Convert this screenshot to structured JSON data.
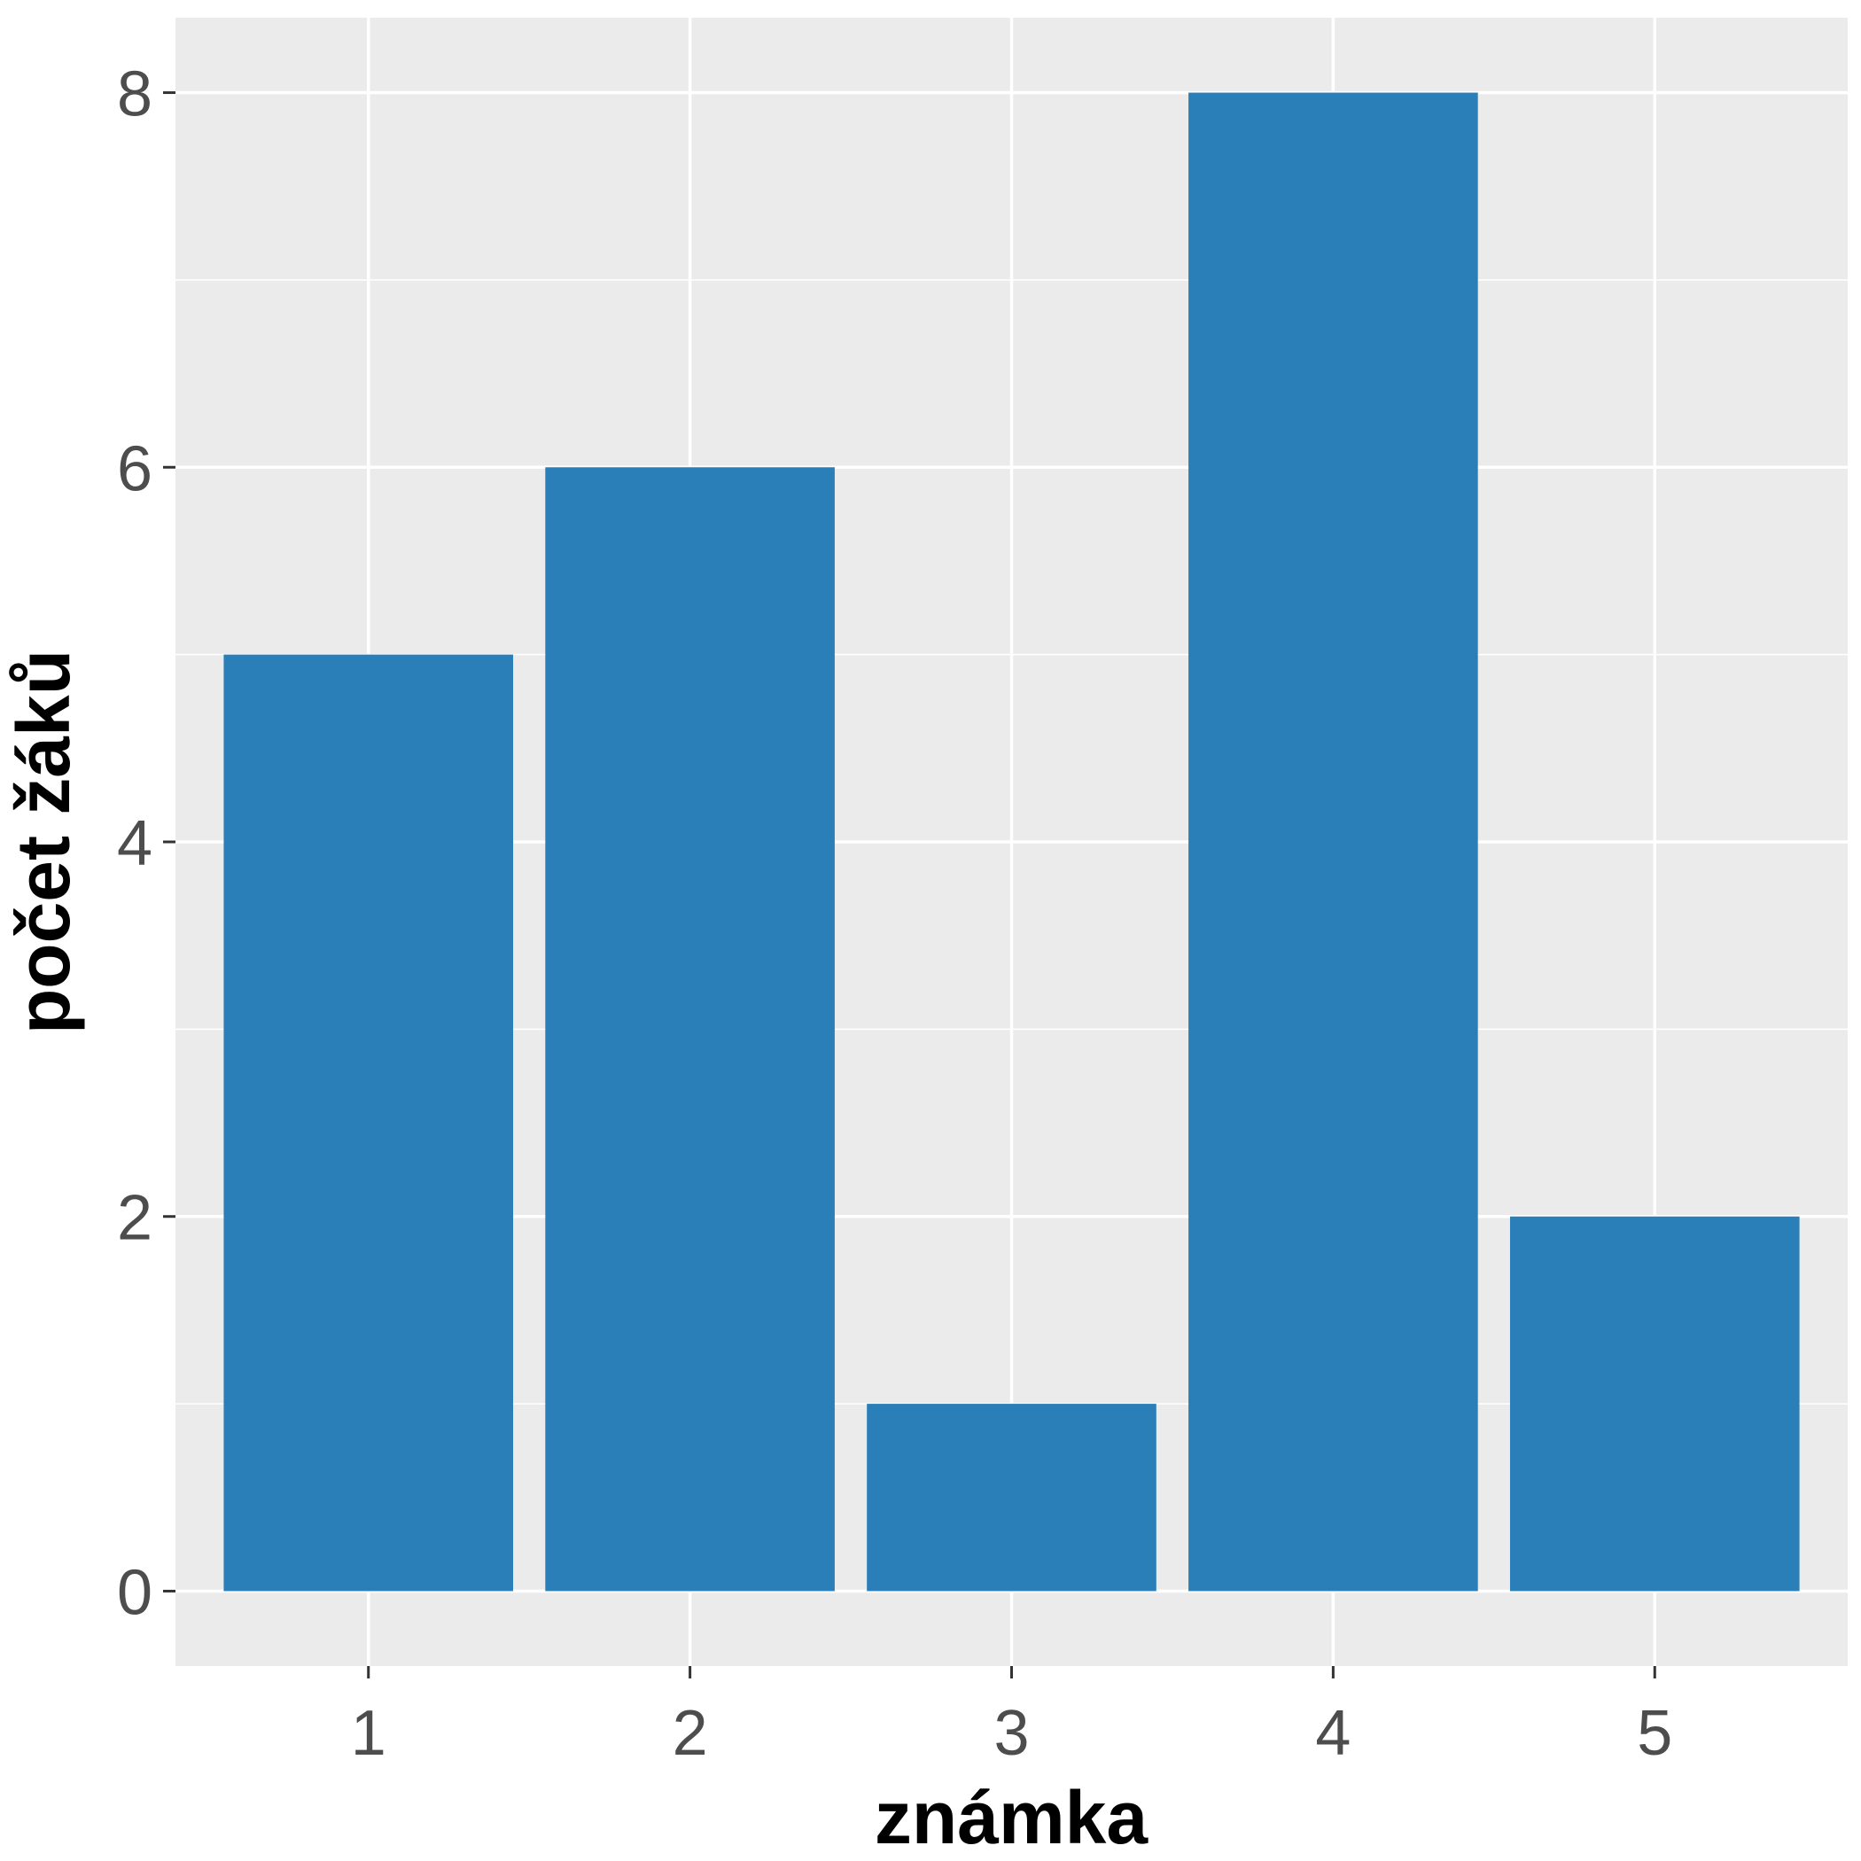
{
  "chart_data": {
    "type": "bar",
    "categories": [
      "1",
      "2",
      "3",
      "4",
      "5"
    ],
    "values": [
      5,
      6,
      1,
      8,
      2
    ],
    "title": "",
    "xlabel": "známka",
    "ylabel": "počet žáků",
    "ylim": [
      -0.4,
      8.4
    ],
    "yticks": [
      0,
      2,
      4,
      6,
      8
    ],
    "grid": true,
    "colors": {
      "bar": "#2b7fb8",
      "panel": "#ebebeb",
      "grid": "#ffffff",
      "tick_text": "#4d4d4d",
      "title_text": "#000000"
    }
  }
}
